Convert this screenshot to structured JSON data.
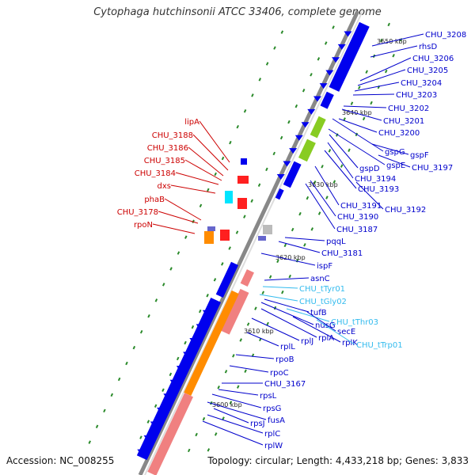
{
  "title": "Cytophaga hutchinsonii ATCC 33406, complete genome",
  "footer": {
    "accession": "Accession: NC_008255",
    "topology": "Topology: circular; Length: 4,433,218 bp; Genes: 3,833"
  },
  "colors": {
    "forward_cds": "#0000ee",
    "reverse_cds": "#0000ee",
    "rrna_trna": "#ff2020",
    "orange_feature": "#ff8c00",
    "pink_feature": "#f08080",
    "green_feature": "#88cc22",
    "cyan_feature": "#00e5ff",
    "backbone": "#888888",
    "label_forward": "#cc0000",
    "label_reverse": "#0000cc",
    "label_trna": "#33bbee",
    "tick_dots": "#2a8a2a"
  },
  "scale_labels": [
    "3650 kbp",
    "3640 kbp",
    "3630 kbp",
    "3620 kbp",
    "3610 kbp",
    "3600 kbp"
  ],
  "left_labels": [
    "lipA",
    "CHU_3188",
    "CHU_3186",
    "CHU_3185",
    "CHU_3184",
    "dxs",
    "phaB",
    "CHU_3178",
    "rpoN"
  ],
  "right_labels": [
    {
      "text": "CHU_3208",
      "kind": "gene"
    },
    {
      "text": "rhsD",
      "kind": "gene"
    },
    {
      "text": "CHU_3206",
      "kind": "gene"
    },
    {
      "text": "CHU_3205",
      "kind": "gene"
    },
    {
      "text": "CHU_3204",
      "kind": "gene"
    },
    {
      "text": "CHU_3203",
      "kind": "gene"
    },
    {
      "text": "CHU_3202",
      "kind": "gene"
    },
    {
      "text": "CHU_3201",
      "kind": "gene"
    },
    {
      "text": "CHU_3200",
      "kind": "gene"
    },
    {
      "text": "gspG",
      "kind": "gene"
    },
    {
      "text": "gspF",
      "kind": "gene"
    },
    {
      "text": "gspE",
      "kind": "gene"
    },
    {
      "text": "CHU_3197",
      "kind": "gene"
    },
    {
      "text": "gspD",
      "kind": "gene"
    },
    {
      "text": "CHU_3194",
      "kind": "gene"
    },
    {
      "text": "CHU_3193",
      "kind": "gene"
    },
    {
      "text": "CHU_3191",
      "kind": "gene"
    },
    {
      "text": "CHU_3192",
      "kind": "gene"
    },
    {
      "text": "CHU_3190",
      "kind": "gene"
    },
    {
      "text": "CHU_3187",
      "kind": "gene"
    },
    {
      "text": "pqqL",
      "kind": "gene"
    },
    {
      "text": "CHU_3181",
      "kind": "gene"
    },
    {
      "text": "ispF",
      "kind": "gene"
    },
    {
      "text": "asnC",
      "kind": "gene"
    },
    {
      "text": "CHU_tTyr01",
      "kind": "trna"
    },
    {
      "text": "CHU_tGly02",
      "kind": "trna"
    },
    {
      "text": "tufB",
      "kind": "gene"
    },
    {
      "text": "CHU_tThr03",
      "kind": "trna"
    },
    {
      "text": "nusG",
      "kind": "gene"
    },
    {
      "text": "secE",
      "kind": "gene"
    },
    {
      "text": "rplA",
      "kind": "gene"
    },
    {
      "text": "rplK",
      "kind": "gene"
    },
    {
      "text": "CHU_tTrp01",
      "kind": "trna"
    },
    {
      "text": "rplJ",
      "kind": "gene"
    },
    {
      "text": "rplL",
      "kind": "gene"
    },
    {
      "text": "rpoB",
      "kind": "gene"
    },
    {
      "text": "rpoC",
      "kind": "gene"
    },
    {
      "text": "CHU_3167",
      "kind": "gene"
    },
    {
      "text": "rpsL",
      "kind": "gene"
    },
    {
      "text": "rpsG",
      "kind": "gene"
    },
    {
      "text": "fusA",
      "kind": "gene"
    },
    {
      "text": "rpsJ",
      "kind": "gene"
    },
    {
      "text": "rplC",
      "kind": "gene"
    },
    {
      "text": "rplW",
      "kind": "gene"
    }
  ]
}
